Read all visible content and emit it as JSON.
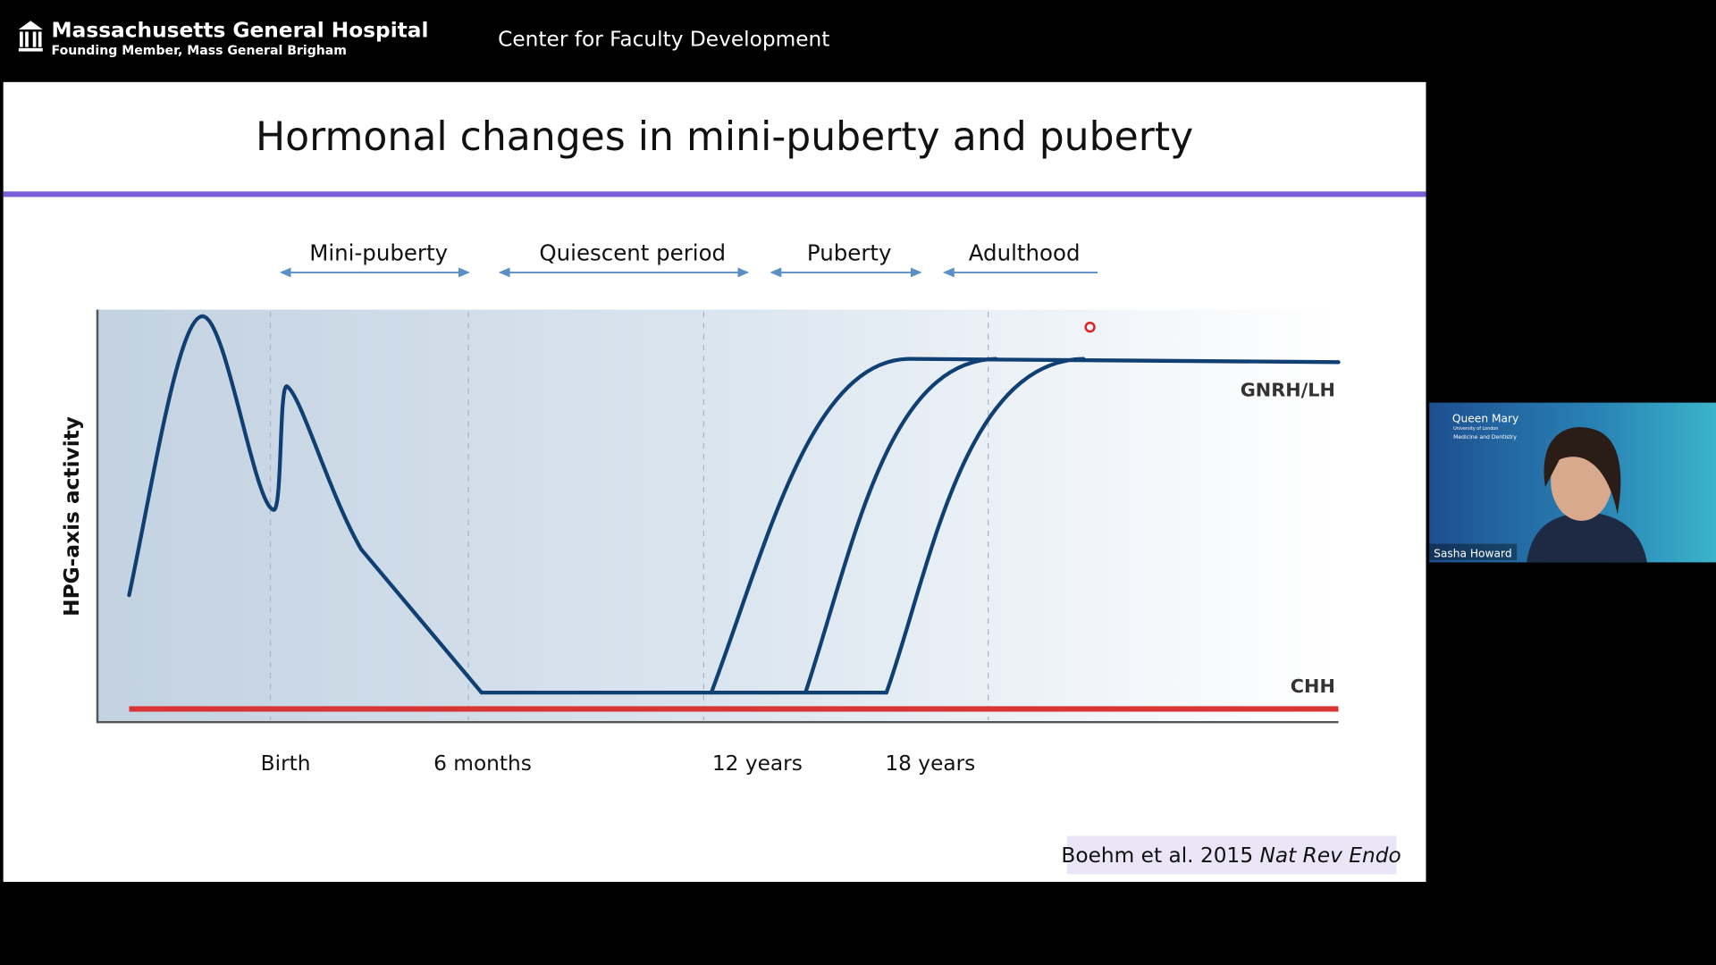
{
  "header": {
    "org": "Massachusetts General Hospital",
    "org_sub": "Founding Member, Mass General Brigham",
    "center": "Center for Faculty Development"
  },
  "slide": {
    "title": "Hormonal changes in mini-puberty and puberty",
    "phases": [
      "Mini-puberty",
      "Quiescent period",
      "Puberty",
      "Adulthood"
    ],
    "y_label": "HPG-axis activity",
    "x_labels": [
      "Birth",
      "6 months",
      "12 years",
      "18 years"
    ],
    "curve_labels": [
      "GNRH/LH",
      "CHH"
    ],
    "citation": {
      "text": "Boehm et al. 2015",
      "journal": "Nat Rev Endo"
    }
  },
  "video": {
    "logo": "Queen Mary",
    "logo_sub1": "University of London",
    "logo_sub2": "Medicine and Dentistry",
    "name": "Sasha Howard"
  }
}
